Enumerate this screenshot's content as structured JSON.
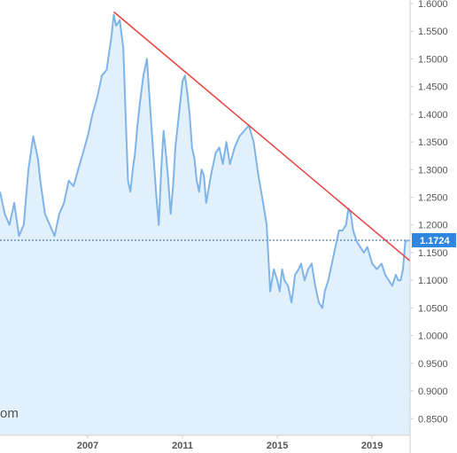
{
  "chart_data": {
    "type": "area",
    "title": "",
    "xlabel": "",
    "ylabel": "",
    "xlim": [
      2003.3,
      2020.6
    ],
    "ylim": [
      0.82,
      1.6
    ],
    "grid": false,
    "x_ticks": [
      2007,
      2011,
      2015,
      2019
    ],
    "x_tick_labels": [
      "2007",
      "2011",
      "2015",
      "2019"
    ],
    "y_ticks": [
      0.85,
      0.9,
      0.95,
      1.0,
      1.05,
      1.1,
      1.15,
      1.2,
      1.25,
      1.3,
      1.35,
      1.4,
      1.45,
      1.5,
      1.55,
      1.6
    ],
    "y_tick_labels": [
      "0.8500",
      "0.9000",
      "0.9500",
      "1.0000",
      "1.0500",
      "1.1000",
      "1.1500",
      "1.2000",
      "1.2500",
      "1.3000",
      "1.3500",
      "1.4000",
      "1.4500",
      "1.5000",
      "1.5500",
      "1.6000"
    ],
    "last_value": 1.1724,
    "last_value_label": "1.1724",
    "watermark": "om",
    "colors": {
      "line": "#7fb4e8",
      "fill": "#e1f0fb",
      "trendline": "#e8423f",
      "last_label_bg": "#2f86e0",
      "ref_line": "#2f5a8a"
    },
    "trendline": {
      "x": [
        2008.1,
        2020.6
      ],
      "y": [
        1.585,
        1.135
      ]
    },
    "series": [
      {
        "x": [
          2003.3,
          2003.5,
          2003.7,
          2003.9,
          2004.1,
          2004.3,
          2004.5,
          2004.7,
          2004.9,
          2005.0,
          2005.2,
          2005.4,
          2005.6,
          2005.8,
          2006.0,
          2006.2,
          2006.4,
          2006.6,
          2006.8,
          2007.0,
          2007.2,
          2007.4,
          2007.6,
          2007.8,
          2008.0,
          2008.1,
          2008.2,
          2008.35,
          2008.5,
          2008.6,
          2008.7,
          2008.8,
          2008.9,
          2009.0,
          2009.1,
          2009.2,
          2009.35,
          2009.5,
          2009.7,
          2009.9,
          2010.0,
          2010.1,
          2010.2,
          2010.3,
          2010.4,
          2010.5,
          2010.6,
          2010.7,
          2010.8,
          2010.9,
          2011.0,
          2011.1,
          2011.2,
          2011.3,
          2011.4,
          2011.5,
          2011.6,
          2011.7,
          2011.8,
          2011.9,
          2012.0,
          2012.2,
          2012.4,
          2012.55,
          2012.7,
          2012.85,
          2013.0,
          2013.2,
          2013.4,
          2013.6,
          2013.8,
          2014.0,
          2014.2,
          2014.4,
          2014.55,
          2014.7,
          2014.85,
          2015.0,
          2015.1,
          2015.2,
          2015.3,
          2015.45,
          2015.6,
          2015.75,
          2015.9,
          2016.0,
          2016.15,
          2016.3,
          2016.45,
          2016.6,
          2016.75,
          2016.9,
          2017.0,
          2017.15,
          2017.3,
          2017.45,
          2017.6,
          2017.75,
          2017.9,
          2018.0,
          2018.1,
          2018.2,
          2018.35,
          2018.5,
          2018.65,
          2018.8,
          2019.0,
          2019.2,
          2019.4,
          2019.55,
          2019.7,
          2019.85,
          2020.0,
          2020.1,
          2020.2,
          2020.3,
          2020.4,
          2020.5,
          2020.6
        ],
        "values": [
          1.26,
          1.22,
          1.2,
          1.24,
          1.18,
          1.2,
          1.3,
          1.36,
          1.32,
          1.28,
          1.22,
          1.2,
          1.18,
          1.22,
          1.24,
          1.28,
          1.27,
          1.3,
          1.33,
          1.36,
          1.4,
          1.43,
          1.47,
          1.48,
          1.54,
          1.58,
          1.56,
          1.57,
          1.52,
          1.4,
          1.28,
          1.26,
          1.3,
          1.33,
          1.38,
          1.42,
          1.47,
          1.5,
          1.37,
          1.25,
          1.2,
          1.3,
          1.37,
          1.33,
          1.28,
          1.22,
          1.27,
          1.34,
          1.38,
          1.42,
          1.46,
          1.47,
          1.44,
          1.4,
          1.34,
          1.32,
          1.28,
          1.26,
          1.3,
          1.29,
          1.24,
          1.29,
          1.33,
          1.34,
          1.31,
          1.35,
          1.31,
          1.34,
          1.36,
          1.37,
          1.38,
          1.35,
          1.29,
          1.24,
          1.2,
          1.08,
          1.12,
          1.1,
          1.08,
          1.12,
          1.1,
          1.09,
          1.06,
          1.11,
          1.12,
          1.13,
          1.1,
          1.12,
          1.13,
          1.09,
          1.06,
          1.05,
          1.08,
          1.1,
          1.13,
          1.16,
          1.19,
          1.19,
          1.2,
          1.23,
          1.22,
          1.19,
          1.17,
          1.16,
          1.15,
          1.16,
          1.13,
          1.12,
          1.13,
          1.11,
          1.1,
          1.09,
          1.11,
          1.1,
          1.1,
          1.12,
          1.17,
          1.172,
          1.172
        ]
      }
    ]
  }
}
